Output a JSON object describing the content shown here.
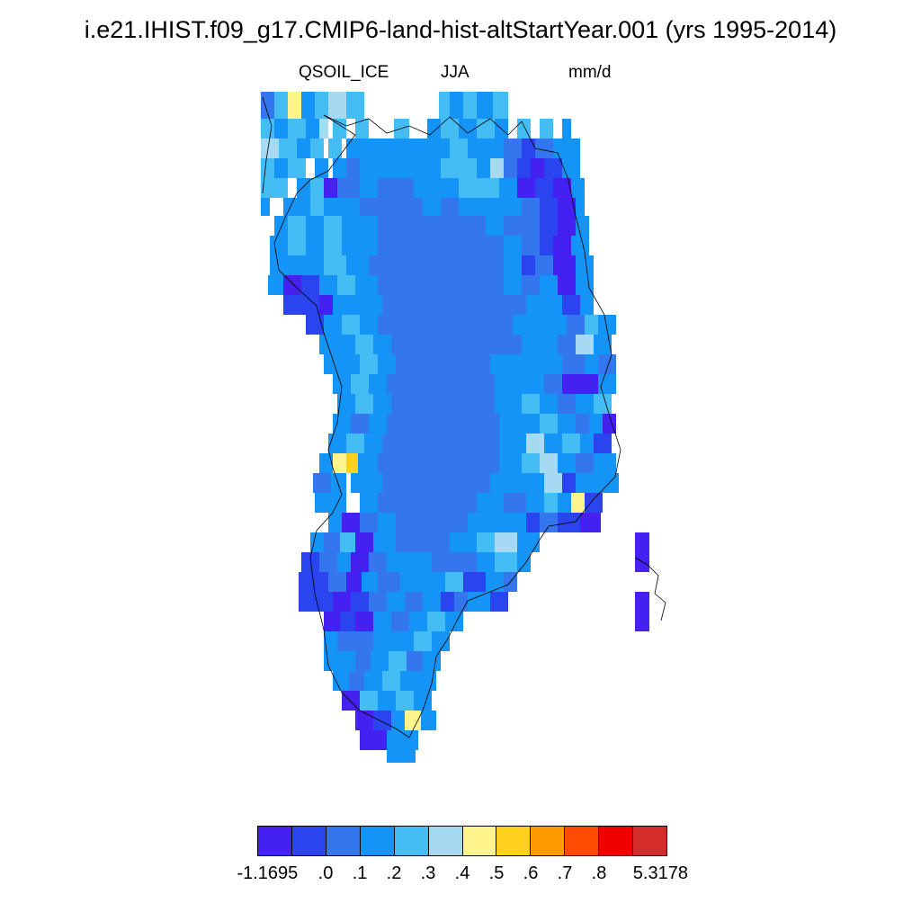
{
  "title": "i.e21.IHIST.f09_g17.CMIP6-land-hist-altStartYear.001 (yrs 1995-2014)",
  "subtitle": {
    "left": "QSOIL_ICE",
    "center": "JJA",
    "right": "mm/d"
  },
  "colorbar": {
    "colors": [
      "#4421f0",
      "#2a44f0",
      "#3476ee",
      "#1494f6",
      "#43bdf4",
      "#a6d9f2",
      "#fff48c",
      "#ffd11f",
      "#ff9b00",
      "#ff4a00",
      "#ee0000",
      "#d42b2b"
    ],
    "labels": [
      "-1.1695",
      ".0",
      ".1",
      ".2",
      ".3",
      ".4",
      ".5",
      ".6",
      ".7",
      ".8",
      "5.3178"
    ]
  }
}
